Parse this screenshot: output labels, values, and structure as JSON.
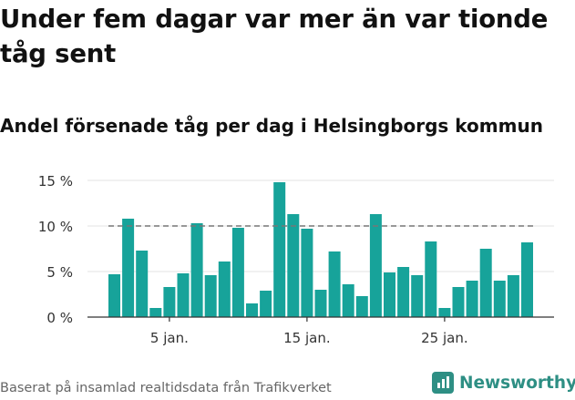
{
  "title": "Under fem dagar var mer än var tionde tåg sent",
  "subtitle": "Andel försenade tåg per dag i Helsingborgs kommun",
  "footer": "Baserat på insamlad realtidsdata från Trafikverket",
  "brand": "Newsworthy",
  "colors": {
    "bar": "#17a39a",
    "brand": "#2e8f84",
    "reference_line": "#777777"
  },
  "icons": {
    "brand_logo": "newsworthy-logo-icon"
  },
  "chart_data": {
    "type": "bar",
    "x_start": "2021-01-01",
    "x_unit": "day",
    "values": [
      4.7,
      10.8,
      7.3,
      1.0,
      3.3,
      4.8,
      10.3,
      4.6,
      6.1,
      9.8,
      1.5,
      2.9,
      14.8,
      11.3,
      9.7,
      3.0,
      7.2,
      3.6,
      2.3,
      11.3,
      4.9,
      5.5,
      4.6,
      8.3,
      1.0,
      3.3,
      4.0,
      7.5,
      4.0,
      4.6,
      8.2
    ],
    "x_tick_labels": [
      "5 jan.",
      "15 jan.",
      "25 jan."
    ],
    "x_tick_days": [
      5,
      15,
      25
    ],
    "y_tick_labels": [
      "0 %",
      "5 %",
      "10 %",
      "15 %"
    ],
    "y_ticks": [
      0,
      5,
      10,
      15
    ],
    "ylim": [
      0,
      15
    ],
    "reference_line": 10,
    "grid": true
  }
}
